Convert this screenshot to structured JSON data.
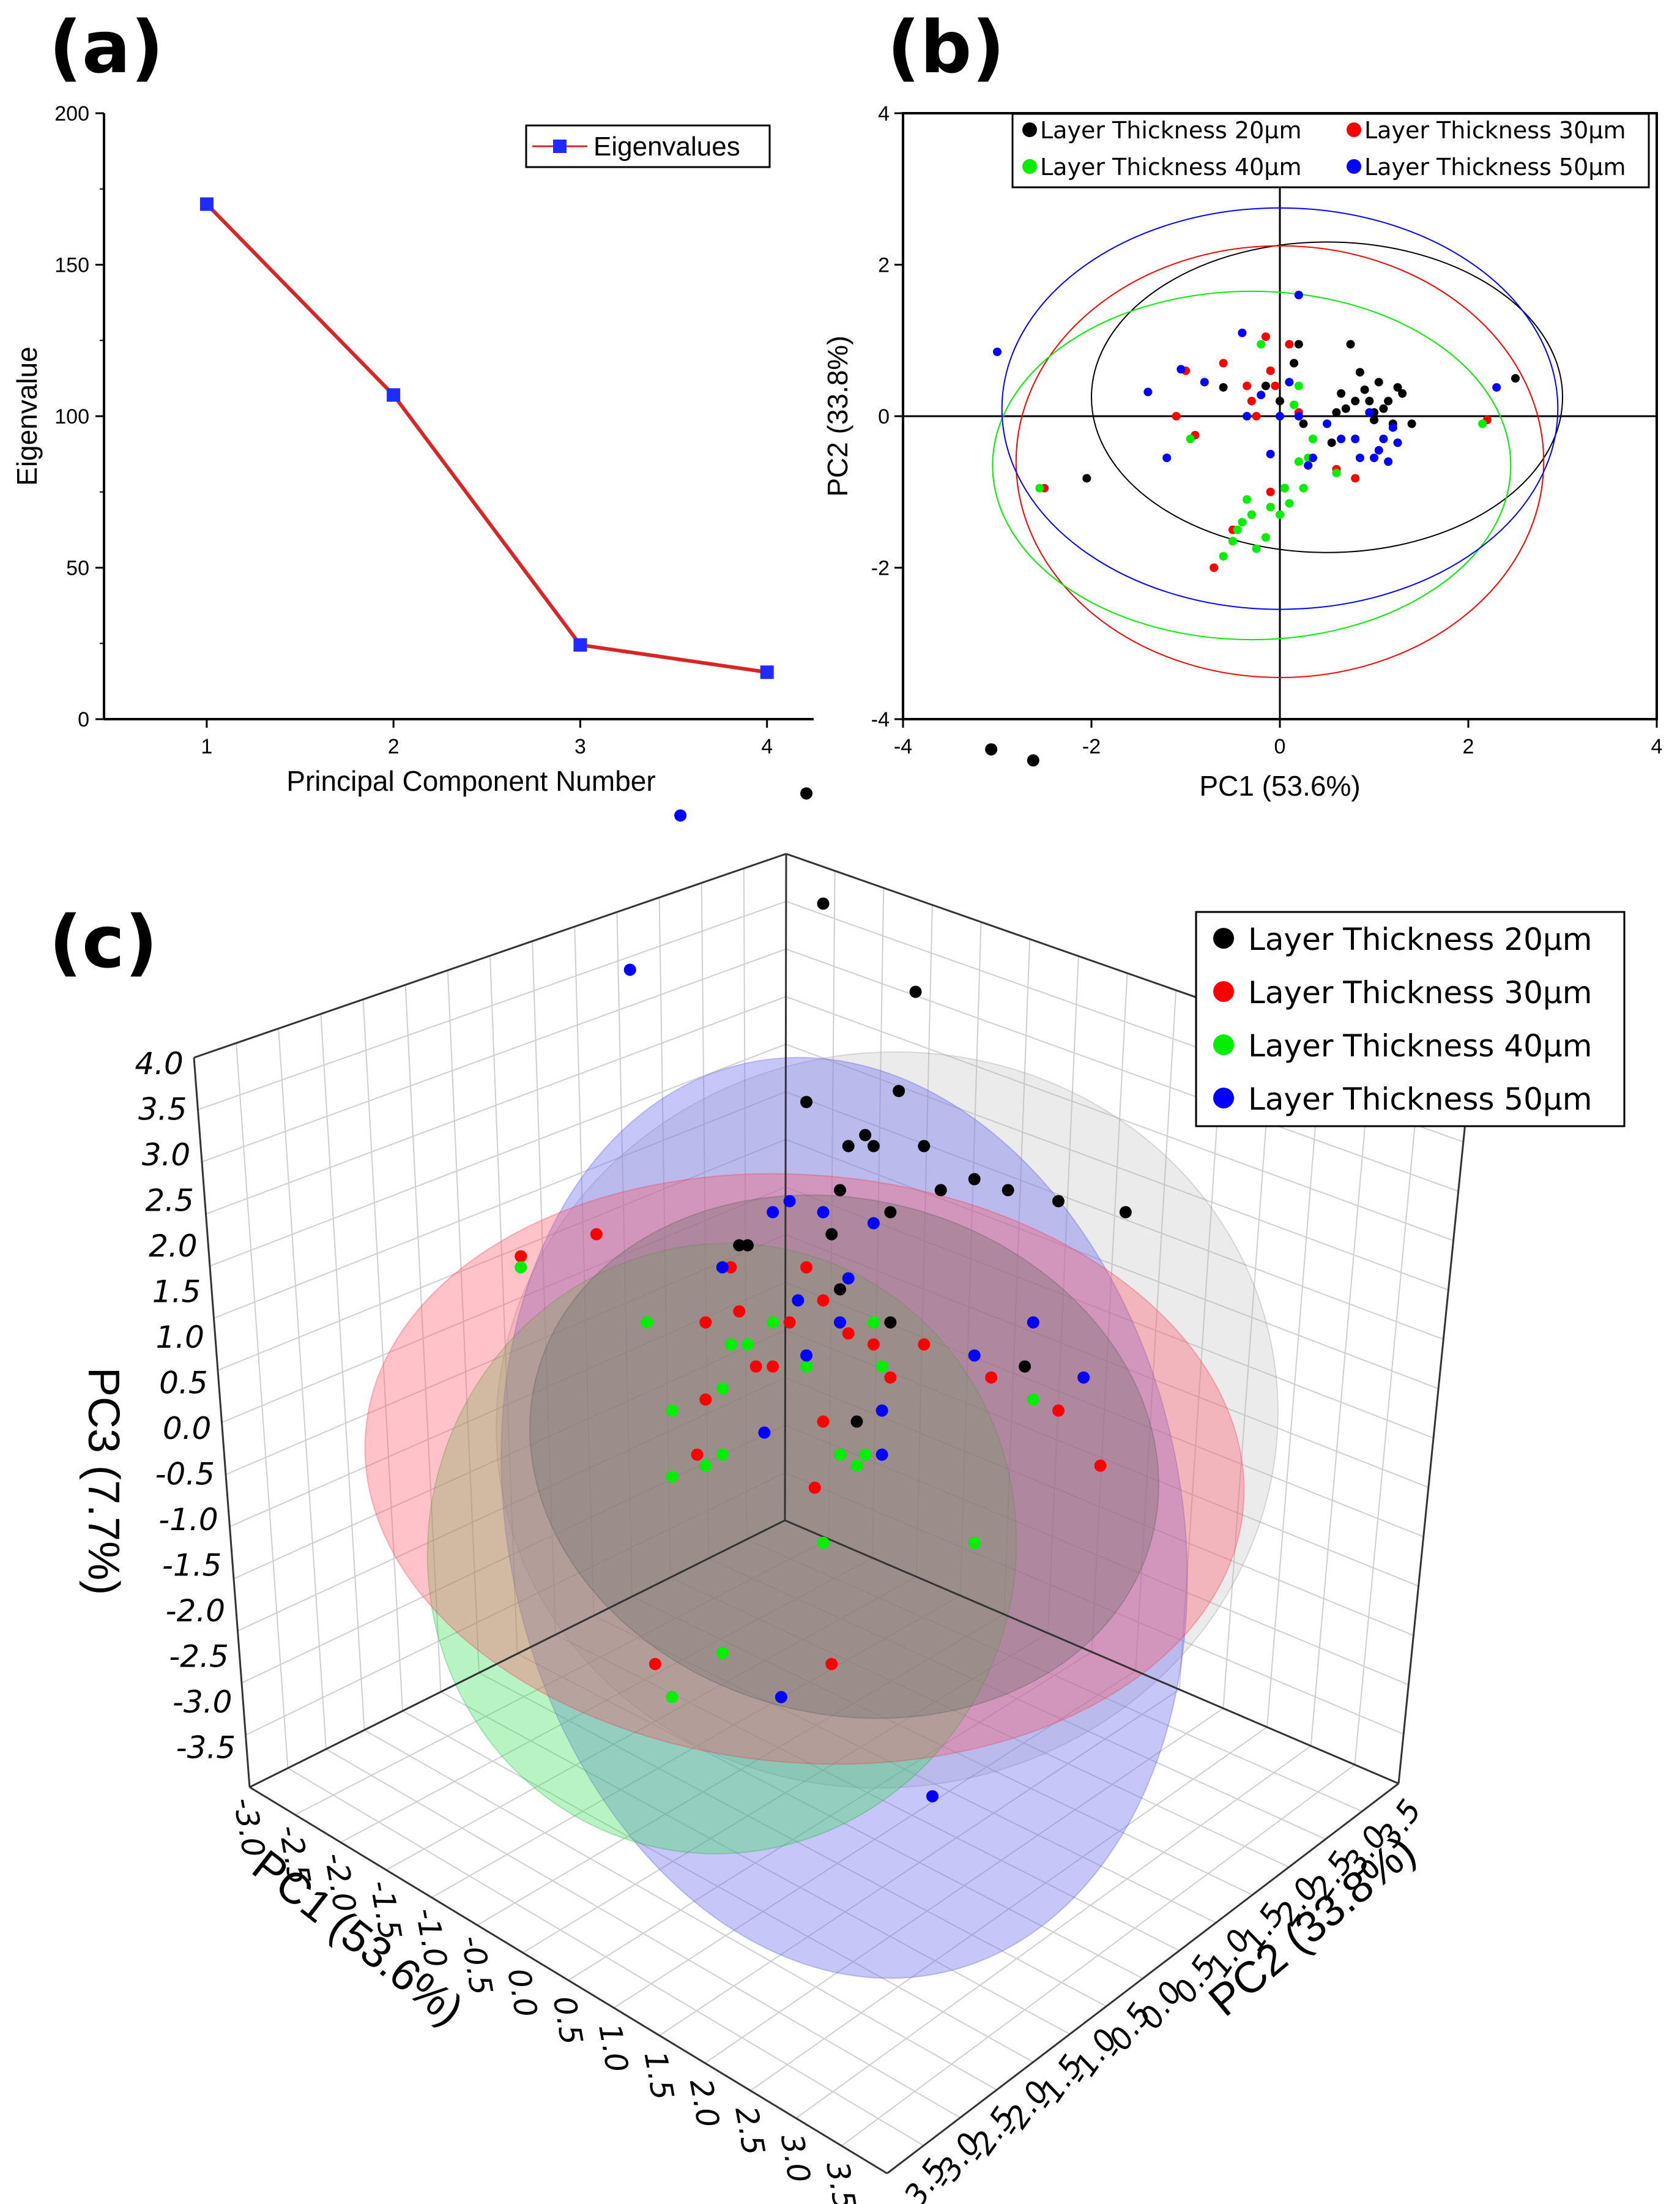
{
  "panels": {
    "a": "(a)",
    "b": "(b)",
    "c": "(c)"
  },
  "colors": {
    "g20": "#000000",
    "g30": "#ff0000",
    "g40": "#00ee00",
    "g50": "#0000ff",
    "scree_line": "#d62728",
    "scree_marker": "#1f2bff"
  },
  "chart_data": [
    {
      "id": "a",
      "type": "line",
      "xlabel": "Principal Component Number",
      "ylabel": "Eigenvalue",
      "xlim": [
        0.45,
        4.25
      ],
      "ylim": [
        0,
        200
      ],
      "xticks": [
        "1",
        "2",
        "3",
        "4"
      ],
      "yticks": [
        "0",
        "50",
        "100",
        "150",
        "200"
      ],
      "legend": "Eigenvalues",
      "series": [
        {
          "name": "Eigenvalues",
          "x": [
            1,
            2,
            3,
            4
          ],
          "values": [
            170,
            107,
            24.5,
            15.5
          ]
        }
      ]
    },
    {
      "id": "b",
      "type": "scatter",
      "xlabel": "PC1 (53.6%)",
      "ylabel": "PC2 (33.8%)",
      "xlim": [
        -4,
        4
      ],
      "ylim": [
        -4,
        4
      ],
      "xticks": [
        "-4",
        "-2",
        "0",
        "2",
        "4"
      ],
      "yticks": [
        "-4",
        "-2",
        "0",
        "2",
        "4"
      ],
      "legend": [
        "Layer Thickness 20μm",
        "Layer Thickness 30μm",
        "Layer Thickness 40μm",
        "Layer Thickness 50μm"
      ],
      "ellipses": [
        {
          "group": "20",
          "cx": 0.5,
          "cy": 0.25,
          "rx": 2.5,
          "ry": 2.05
        },
        {
          "group": "30",
          "cx": 0.0,
          "cy": -0.6,
          "rx": 2.8,
          "ry": 2.85
        },
        {
          "group": "40",
          "cx": -0.3,
          "cy": -0.65,
          "rx": 2.75,
          "ry": 2.3
        },
        {
          "group": "50",
          "cx": 0.0,
          "cy": 0.1,
          "rx": 2.95,
          "ry": 2.65
        }
      ],
      "series": [
        {
          "name": "Layer Thickness 20μm",
          "group": "20",
          "x": [
            -2.05,
            0.05,
            0.2,
            0.65,
            0.7,
            0.75,
            0.8,
            0.85,
            0.9,
            0.95,
            1.0,
            1.05,
            1.1,
            1.15,
            1.2,
            1.25,
            1.3,
            1.4,
            2.5,
            0.15,
            0.25,
            0.55,
            0.6,
            -0.6,
            0.0,
            1.0,
            -0.15
          ],
          "y": [
            -0.82,
            -0.95,
            0.95,
            0.3,
            0.1,
            0.95,
            0.2,
            0.58,
            0.35,
            0.2,
            -0.05,
            0.45,
            0.1,
            0.2,
            -0.1,
            0.38,
            0.3,
            -0.1,
            0.5,
            0.7,
            -0.1,
            -0.35,
            0.05,
            0.38,
            0.2,
            0.05,
            0.4
          ]
        },
        {
          "name": "Layer Thickness 30μm",
          "group": "30",
          "x": [
            -2.5,
            -1.1,
            -0.9,
            -0.7,
            -0.5,
            -0.35,
            -0.25,
            -0.15,
            -0.1,
            -0.05,
            0.1,
            -0.5,
            -0.3,
            0.2,
            0.8,
            2.2,
            -0.3,
            -0.6,
            -1.0,
            -0.1,
            0.6
          ],
          "y": [
            -0.95,
            0.0,
            -0.25,
            -2.0,
            -1.65,
            0.4,
            0.0,
            1.05,
            0.6,
            0.4,
            0.95,
            -1.5,
            -1.3,
            0.05,
            -0.82,
            -0.05,
            0.2,
            0.7,
            0.6,
            -1.0,
            -0.7
          ]
        },
        {
          "name": "Layer Thickness 40μm",
          "group": "40",
          "x": [
            -2.55,
            -0.95,
            -0.6,
            -0.5,
            -0.45,
            -0.35,
            -0.3,
            -0.25,
            -0.2,
            -0.15,
            -0.1,
            0.0,
            0.05,
            0.1,
            0.15,
            0.2,
            0.25,
            0.3,
            0.35,
            2.15,
            0.6,
            0.8,
            -0.4,
            0.2
          ],
          "y": [
            -0.95,
            -0.3,
            -1.85,
            -1.65,
            -1.5,
            -1.1,
            -1.3,
            -1.75,
            0.95,
            -1.6,
            -1.2,
            -1.3,
            -0.95,
            -1.15,
            0.15,
            -0.6,
            -0.95,
            -0.55,
            -0.3,
            -0.1,
            -0.75,
            -0.3,
            -1.4,
            0.4
          ]
        },
        {
          "name": "Layer Thickness 50μm",
          "group": "50",
          "x": [
            -3.0,
            -1.4,
            -1.2,
            -1.05,
            -0.8,
            -0.4,
            -0.35,
            -0.2,
            0.0,
            0.1,
            0.2,
            0.3,
            0.35,
            0.65,
            0.8,
            0.85,
            0.95,
            1.0,
            1.05,
            1.1,
            1.15,
            1.2,
            1.25,
            2.3,
            0.2,
            -0.1,
            0.5
          ],
          "y": [
            0.85,
            0.32,
            -0.55,
            0.62,
            0.45,
            1.1,
            0.0,
            0.28,
            0.0,
            0.45,
            1.6,
            -0.65,
            -0.55,
            -0.3,
            -0.3,
            -0.55,
            0.05,
            -0.55,
            -0.45,
            -0.3,
            -0.6,
            -0.15,
            -0.35,
            0.38,
            0.0,
            -0.5,
            -0.1
          ]
        }
      ]
    },
    {
      "id": "c",
      "type": "scatter",
      "xlabel": "PC1 (53.6%)",
      "ylabel": "PC2 (33.8%)",
      "zlabel": "PC3 (7.7%)",
      "xticks": [
        "-3.0",
        "-2.5",
        "-2.0",
        "-1.5",
        "-1.0",
        "-0.5",
        "0.0",
        "0.5",
        "1.0",
        "1.5",
        "2.0",
        "2.5",
        "3.0",
        "3.5"
      ],
      "yticks": [
        "-3.5",
        "-3.0",
        "-2.5",
        "-2.0",
        "-1.5",
        "-1.0",
        "-0.5",
        "0.0",
        "0.5",
        "1.0",
        "1.5",
        "2.0",
        "2.5",
        "3.0",
        "3.5"
      ],
      "zticks": [
        "4.0",
        "3.5",
        "3.0",
        "2.5",
        "2.0",
        "1.5",
        "1.0",
        "0.5",
        "0.0",
        "-0.5",
        "-1.0",
        "-1.5",
        "-2.0",
        "-2.5",
        "-3.0",
        "-3.5"
      ],
      "legend": [
        "Layer Thickness 20μm",
        "Layer Thickness 30μm",
        "Layer Thickness 40μm",
        "Layer Thickness 50μm"
      ],
      "projected_points": [
        {
          "group": "20",
          "h": [
            0.48,
            0.615,
            0.59,
            0.545,
            0.49,
            0.48,
            0.535,
            0.5,
            0.52,
            0.58,
            0.55,
            0.515,
            0.505,
            0.56,
            0.6,
            0.53,
            0.495,
            0.63,
            0.67,
            0.44,
            0.445,
            0.51,
            0.53,
            0.5,
            0.61
          ],
          "v": [
            0.36,
            0.345,
            0.34,
            0.45,
            0.41,
            0.5,
            0.495,
            0.54,
            0.52,
            0.535,
            0.52,
            0.515,
            0.52,
            0.54,
            0.54,
            0.55,
            0.56,
            0.545,
            0.55,
            0.565,
            0.565,
            0.645,
            0.6,
            0.585,
            0.62
          ]
        },
        {
          "group": "30",
          "h": [
            0.31,
            0.355,
            0.435,
            0.44,
            0.45,
            0.42,
            0.415,
            0.47,
            0.46,
            0.48,
            0.49,
            0.505,
            0.52,
            0.53,
            0.55,
            0.59,
            0.63,
            0.655,
            0.39,
            0.495,
            0.5,
            0.485,
            0.42,
            0.49
          ],
          "v": [
            0.57,
            0.56,
            0.575,
            0.595,
            0.62,
            0.635,
            0.66,
            0.6,
            0.62,
            0.575,
            0.59,
            0.605,
            0.61,
            0.625,
            0.61,
            0.625,
            0.64,
            0.665,
            0.755,
            0.755,
            0.66,
            0.675,
            0.6,
            0.645
          ]
        },
        {
          "group": "40",
          "h": [
            0.31,
            0.385,
            0.4,
            0.42,
            0.43,
            0.435,
            0.445,
            0.46,
            0.48,
            0.5,
            0.51,
            0.515,
            0.525,
            0.58,
            0.615,
            0.4,
            0.43,
            0.43,
            0.4,
            0.52,
            0.49
          ],
          "v": [
            0.575,
            0.6,
            0.64,
            0.665,
            0.63,
            0.61,
            0.61,
            0.6,
            0.62,
            0.66,
            0.665,
            0.66,
            0.62,
            0.7,
            0.635,
            0.67,
            0.66,
            0.75,
            0.77,
            0.6,
            0.7
          ]
        },
        {
          "group": "50",
          "h": [
            0.405,
            0.375,
            0.43,
            0.46,
            0.475,
            0.48,
            0.49,
            0.505,
            0.52,
            0.525,
            0.58,
            0.615,
            0.645,
            0.465,
            0.555,
            0.47,
            0.5,
            0.525,
            0.455
          ],
          "v": [
            0.37,
            0.44,
            0.575,
            0.55,
            0.59,
            0.615,
            0.55,
            0.58,
            0.555,
            0.66,
            0.615,
            0.6,
            0.625,
            0.77,
            0.815,
            0.545,
            0.6,
            0.64,
            0.65
          ]
        }
      ]
    }
  ]
}
